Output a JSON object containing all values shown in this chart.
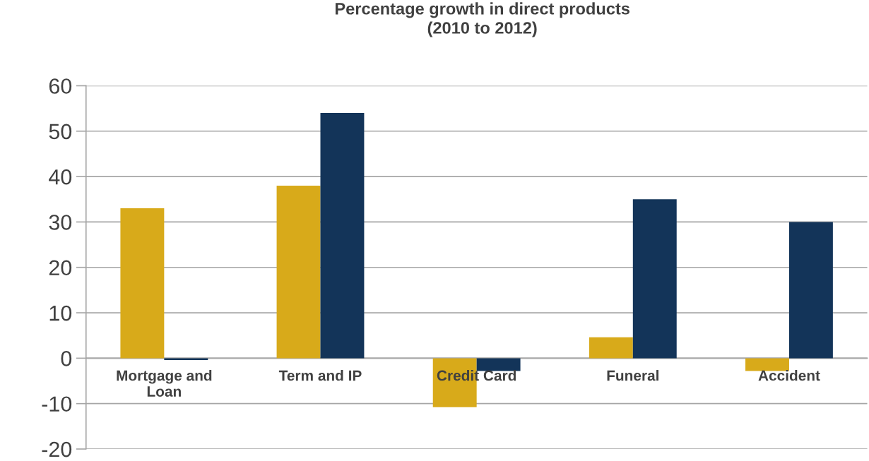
{
  "chart_data": {
    "type": "bar",
    "title": "Percentage growth in direct products\n(2010 to 2012)",
    "categories": [
      "Mortgage and\nLoan",
      "Term and IP",
      "Credit Card",
      "Funeral",
      "Accident"
    ],
    "series": [
      {
        "color": "#d8aa1a",
        "values": [
          33,
          38,
          -10.8,
          4.6,
          -2.8
        ]
      },
      {
        "color": "#133459",
        "values": [
          -0.4,
          54,
          -2.8,
          35,
          30
        ]
      }
    ],
    "ylim": [
      -20,
      60
    ],
    "yticks": [
      -20,
      -10,
      0,
      10,
      20,
      30,
      40,
      50,
      60
    ],
    "grid": "y"
  }
}
